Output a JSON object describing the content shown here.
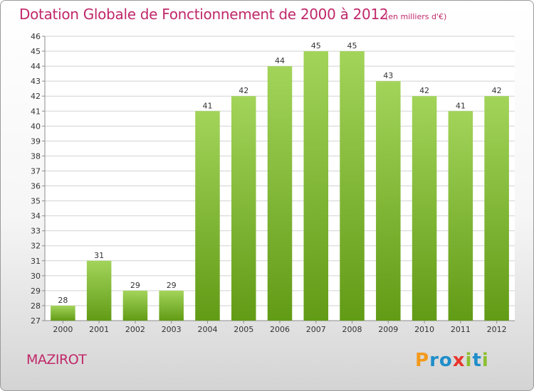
{
  "title": "Dotation Globale de Fonctionnement de 2000 à 2012",
  "units": "(en milliers d'€)",
  "commune": "MAZIROT",
  "logo_text": "Proxiti",
  "colors": {
    "title": "#c0286a",
    "bar_top": "#a2d45a",
    "bar_bottom": "#629b16",
    "grid": "#d2d2d2",
    "axis": "#8c8c8c",
    "text": "#333333"
  },
  "chart_data": {
    "type": "bar",
    "categories": [
      "2000",
      "2001",
      "2002",
      "2003",
      "2004",
      "2005",
      "2006",
      "2007",
      "2008",
      "2009",
      "2010",
      "2011",
      "2012"
    ],
    "values": [
      28,
      31,
      29,
      29,
      41,
      42,
      44,
      45,
      45,
      43,
      42,
      41,
      42
    ],
    "ylim": [
      27,
      46
    ],
    "yticks": [
      27,
      28,
      29,
      30,
      31,
      32,
      33,
      34,
      35,
      36,
      37,
      38,
      39,
      40,
      41,
      42,
      43,
      44,
      45,
      46
    ],
    "grid": true,
    "data_labels": true
  }
}
